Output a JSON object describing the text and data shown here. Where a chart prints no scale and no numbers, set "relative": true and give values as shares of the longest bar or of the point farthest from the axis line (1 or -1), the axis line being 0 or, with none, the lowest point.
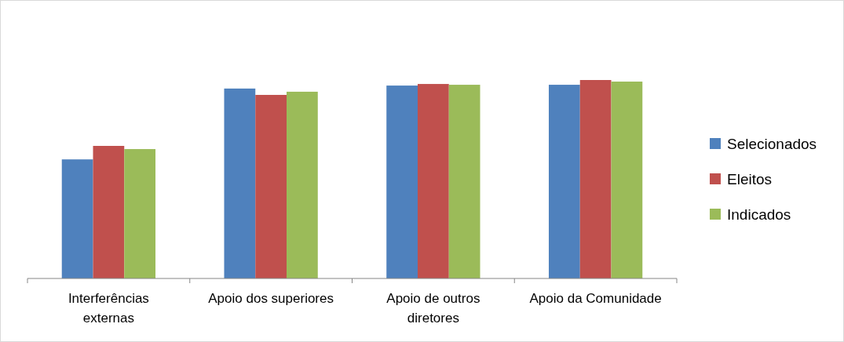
{
  "chart_data": {
    "type": "bar",
    "relative": true,
    "categories": [
      "Interferências externas",
      "Apoio dos superiores",
      "Apoio de outros diretores",
      "Apoio da Comunidade"
    ],
    "series": [
      {
        "name": "Selecionados",
        "color": "#4f81bd",
        "values": [
          0.6,
          0.957,
          0.972,
          0.976
        ]
      },
      {
        "name": "Eleitos",
        "color": "#c0504d",
        "values": [
          0.668,
          0.925,
          0.98,
          1
        ]
      },
      {
        "name": "Indicados",
        "color": "#9bbb59",
        "values": [
          0.652,
          0.941,
          0.976,
          0.992
        ]
      }
    ],
    "legend": "right"
  }
}
